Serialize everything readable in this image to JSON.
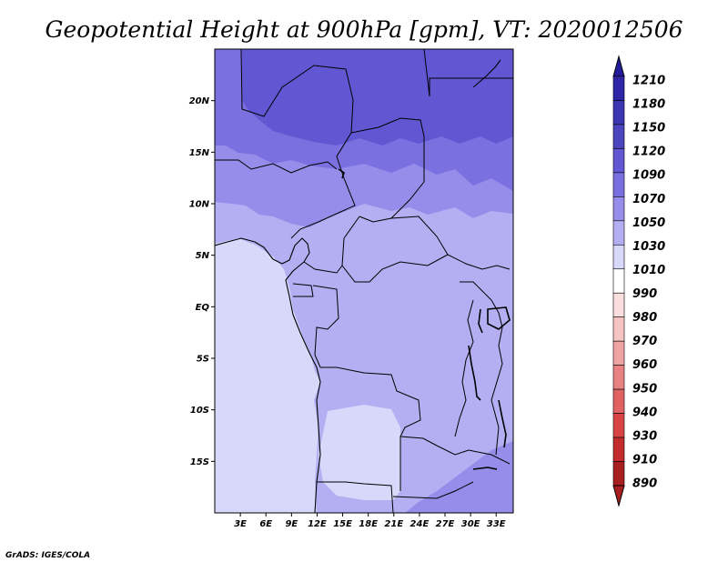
{
  "title": "Geopotential Height at 900hPa [gpm], VT: 2020012506",
  "credit": "GrADS: IGES/COLA",
  "map": {
    "projection": "latlon",
    "lon_range": [
      0,
      35
    ],
    "lat_range": [
      -20,
      25
    ],
    "lat_ticks": [
      {
        "value": 20,
        "label": "20N"
      },
      {
        "value": 15,
        "label": "15N"
      },
      {
        "value": 10,
        "label": "10N"
      },
      {
        "value": 5,
        "label": "5N"
      },
      {
        "value": 0,
        "label": "EQ"
      },
      {
        "value": -5,
        "label": "5S"
      },
      {
        "value": -10,
        "label": "10S"
      },
      {
        "value": -15,
        "label": "15S"
      }
    ],
    "lon_ticks": [
      {
        "value": 3,
        "label": "3E"
      },
      {
        "value": 6,
        "label": "6E"
      },
      {
        "value": 9,
        "label": "9E"
      },
      {
        "value": 12,
        "label": "12E"
      },
      {
        "value": 15,
        "label": "15E"
      },
      {
        "value": 18,
        "label": "18E"
      },
      {
        "value": 21,
        "label": "21E"
      },
      {
        "value": 24,
        "label": "24E"
      },
      {
        "value": 27,
        "label": "27E"
      },
      {
        "value": 30,
        "label": "30E"
      },
      {
        "value": 33,
        "label": "33E"
      }
    ],
    "field_levels": [
      "1010",
      "1030",
      "1050",
      "1070",
      "1090"
    ]
  },
  "colorbar": {
    "levels": [
      {
        "label": "1210",
        "color": "#231a9c"
      },
      {
        "label": "1180",
        "color": "#2e26a6"
      },
      {
        "label": "1150",
        "color": "#3c35b3"
      },
      {
        "label": "1120",
        "color": "#4c45c0"
      },
      {
        "label": "1090",
        "color": "#6257d2"
      },
      {
        "label": "1070",
        "color": "#7a70e0"
      },
      {
        "label": "1050",
        "color": "#958de9"
      },
      {
        "label": "1030",
        "color": "#b3aff2"
      },
      {
        "label": "1010",
        "color": "#d8d8fb"
      },
      {
        "label": "990",
        "color": "#ffffff"
      },
      {
        "label": "980",
        "color": "#fbdede"
      },
      {
        "label": "970",
        "color": "#f7c4c4"
      },
      {
        "label": "960",
        "color": "#f0a3a3"
      },
      {
        "label": "950",
        "color": "#e88282"
      },
      {
        "label": "940",
        "color": "#e06262"
      },
      {
        "label": "930",
        "color": "#d84444"
      },
      {
        "label": "910",
        "color": "#c22c2c"
      },
      {
        "label": "890",
        "color": "#a81f1f"
      }
    ]
  }
}
